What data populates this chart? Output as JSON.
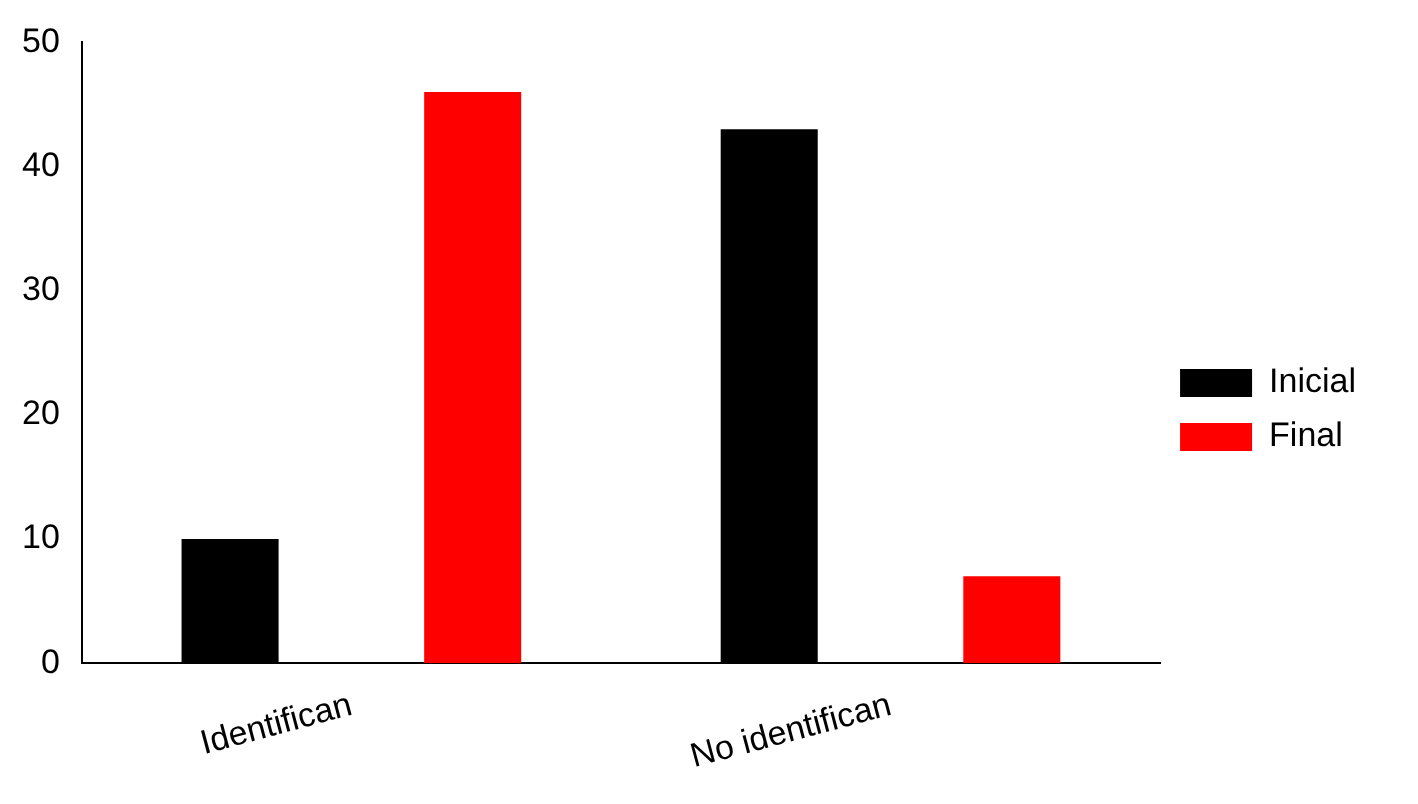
{
  "chart_data": {
    "type": "bar",
    "categories": [
      "Identifican",
      "No identifican"
    ],
    "series": [
      {
        "name": "Inicial",
        "color": "#000000",
        "values": [
          10,
          43
        ]
      },
      {
        "name": "Final",
        "color": "#ff0000",
        "values": [
          46,
          7
        ]
      }
    ],
    "ylim": [
      0,
      50
    ],
    "yticks": [
      0,
      10,
      20,
      30,
      40,
      50
    ],
    "grid": false,
    "legend": "right"
  }
}
